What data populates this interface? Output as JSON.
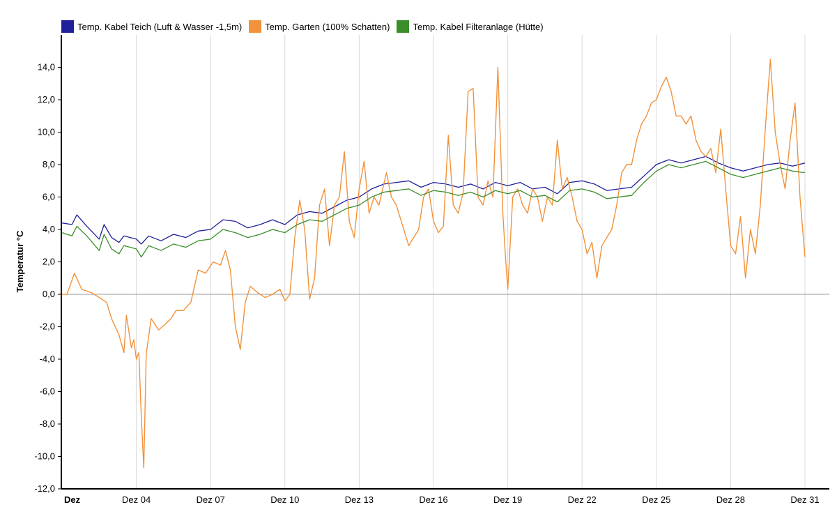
{
  "legend": {
    "items": [
      {
        "label": "Temp. Kabel Teich (Luft & Wasser -1,5m)",
        "color": "#1f1f9a"
      },
      {
        "label": "Temp. Garten (100% Schatten)",
        "color": "#f2923a"
      },
      {
        "label": "Temp. Kabel Filteranlage (Hütte)",
        "color": "#3a8e2a"
      }
    ]
  },
  "chart_data": {
    "type": "line",
    "ylabel": "Temperatur °C",
    "ylim": [
      -12,
      16
    ],
    "xlim": [
      1,
      31
    ],
    "y_ticks": [
      {
        "v": -12,
        "label": "-12,0"
      },
      {
        "v": -10,
        "label": "-10,0"
      },
      {
        "v": -8,
        "label": "-8,0"
      },
      {
        "v": -6,
        "label": "-6,0"
      },
      {
        "v": -4,
        "label": "-4,0"
      },
      {
        "v": -2,
        "label": "-2,0"
      },
      {
        "v": 0,
        "label": "0,0"
      },
      {
        "v": 2,
        "label": "2,0"
      },
      {
        "v": 4,
        "label": "4,0"
      },
      {
        "v": 6,
        "label": "6,0"
      },
      {
        "v": 8,
        "label": "8,0"
      },
      {
        "v": 10,
        "label": "10,0"
      },
      {
        "v": 12,
        "label": "12,0"
      },
      {
        "v": 14,
        "label": "14,0"
      }
    ],
    "x_ticks": [
      {
        "v": 1,
        "label": "Dez",
        "bold": true
      },
      {
        "v": 4,
        "label": "Dez 04"
      },
      {
        "v": 7,
        "label": "Dez 07"
      },
      {
        "v": 10,
        "label": "Dez 10"
      },
      {
        "v": 13,
        "label": "Dez 13"
      },
      {
        "v": 16,
        "label": "Dez 16"
      },
      {
        "v": 19,
        "label": "Dez 19"
      },
      {
        "v": 22,
        "label": "Dez 22"
      },
      {
        "v": 25,
        "label": "Dez 25"
      },
      {
        "v": 28,
        "label": "Dez 28"
      },
      {
        "v": 31,
        "label": "Dez 31"
      }
    ],
    "grid": true,
    "legend_position": "top-left",
    "series": [
      {
        "name": "Temp. Kabel Teich (Luft & Wasser -1,5m)",
        "color": "#1f1f9a",
        "points": [
          [
            1.0,
            4.4
          ],
          [
            1.4,
            4.3
          ],
          [
            1.6,
            4.9
          ],
          [
            2.0,
            4.2
          ],
          [
            2.5,
            3.4
          ],
          [
            2.7,
            4.3
          ],
          [
            3.0,
            3.5
          ],
          [
            3.3,
            3.2
          ],
          [
            3.5,
            3.6
          ],
          [
            4.0,
            3.4
          ],
          [
            4.2,
            3.1
          ],
          [
            4.5,
            3.6
          ],
          [
            5.0,
            3.3
          ],
          [
            5.5,
            3.7
          ],
          [
            6.0,
            3.5
          ],
          [
            6.5,
            3.9
          ],
          [
            7.0,
            4.0
          ],
          [
            7.5,
            4.6
          ],
          [
            8.0,
            4.5
          ],
          [
            8.5,
            4.1
          ],
          [
            9.0,
            4.3
          ],
          [
            9.5,
            4.6
          ],
          [
            10.0,
            4.3
          ],
          [
            10.5,
            4.9
          ],
          [
            11.0,
            5.1
          ],
          [
            11.5,
            5.0
          ],
          [
            12.0,
            5.4
          ],
          [
            12.5,
            5.8
          ],
          [
            13.0,
            6.0
          ],
          [
            13.5,
            6.5
          ],
          [
            14.0,
            6.8
          ],
          [
            14.5,
            6.9
          ],
          [
            15.0,
            7.0
          ],
          [
            15.5,
            6.6
          ],
          [
            16.0,
            6.9
          ],
          [
            16.5,
            6.8
          ],
          [
            17.0,
            6.6
          ],
          [
            17.5,
            6.8
          ],
          [
            18.0,
            6.5
          ],
          [
            18.5,
            6.9
          ],
          [
            19.0,
            6.7
          ],
          [
            19.5,
            6.9
          ],
          [
            20.0,
            6.5
          ],
          [
            20.5,
            6.6
          ],
          [
            21.0,
            6.2
          ],
          [
            21.5,
            6.9
          ],
          [
            22.0,
            7.0
          ],
          [
            22.5,
            6.8
          ],
          [
            23.0,
            6.4
          ],
          [
            23.5,
            6.5
          ],
          [
            24.0,
            6.6
          ],
          [
            24.5,
            7.3
          ],
          [
            25.0,
            8.0
          ],
          [
            25.5,
            8.3
          ],
          [
            26.0,
            8.1
          ],
          [
            26.5,
            8.3
          ],
          [
            27.0,
            8.5
          ],
          [
            27.5,
            8.1
          ],
          [
            28.0,
            7.8
          ],
          [
            28.5,
            7.6
          ],
          [
            29.0,
            7.8
          ],
          [
            29.5,
            8.0
          ],
          [
            30.0,
            8.1
          ],
          [
            30.5,
            7.9
          ],
          [
            31.0,
            8.1
          ]
        ]
      },
      {
        "name": "Temp. Garten (100% Schatten)",
        "color": "#f2923a",
        "points": [
          [
            1.0,
            0.0
          ],
          [
            1.2,
            0.0
          ],
          [
            1.5,
            1.3
          ],
          [
            1.8,
            0.3
          ],
          [
            2.2,
            0.1
          ],
          [
            2.5,
            -0.2
          ],
          [
            2.8,
            -0.5
          ],
          [
            3.0,
            -1.5
          ],
          [
            3.3,
            -2.5
          ],
          [
            3.5,
            -3.6
          ],
          [
            3.6,
            -1.3
          ],
          [
            3.8,
            -3.3
          ],
          [
            3.9,
            -2.8
          ],
          [
            4.0,
            -4.0
          ],
          [
            4.1,
            -3.6
          ],
          [
            4.2,
            -7.5
          ],
          [
            4.3,
            -10.7
          ],
          [
            4.4,
            -3.7
          ],
          [
            4.6,
            -1.5
          ],
          [
            4.9,
            -2.2
          ],
          [
            5.2,
            -1.8
          ],
          [
            5.4,
            -1.5
          ],
          [
            5.6,
            -1.0
          ],
          [
            5.9,
            -1.0
          ],
          [
            6.2,
            -0.5
          ],
          [
            6.5,
            1.5
          ],
          [
            6.8,
            1.3
          ],
          [
            7.1,
            2.0
          ],
          [
            7.4,
            1.8
          ],
          [
            7.6,
            2.7
          ],
          [
            7.8,
            1.5
          ],
          [
            8.0,
            -2.0
          ],
          [
            8.2,
            -3.4
          ],
          [
            8.4,
            -0.5
          ],
          [
            8.6,
            0.5
          ],
          [
            8.9,
            0.1
          ],
          [
            9.2,
            -0.2
          ],
          [
            9.5,
            0.0
          ],
          [
            9.8,
            0.3
          ],
          [
            10.0,
            -0.4
          ],
          [
            10.2,
            0.0
          ],
          [
            10.4,
            3.5
          ],
          [
            10.6,
            5.8
          ],
          [
            10.8,
            4.0
          ],
          [
            11.0,
            -0.3
          ],
          [
            11.2,
            1.0
          ],
          [
            11.4,
            5.5
          ],
          [
            11.6,
            6.5
          ],
          [
            11.8,
            3.0
          ],
          [
            12.0,
            5.5
          ],
          [
            12.2,
            6.0
          ],
          [
            12.4,
            8.8
          ],
          [
            12.6,
            4.5
          ],
          [
            12.8,
            3.5
          ],
          [
            13.0,
            6.5
          ],
          [
            13.2,
            8.2
          ],
          [
            13.4,
            5.0
          ],
          [
            13.6,
            6.0
          ],
          [
            13.8,
            5.5
          ],
          [
            14.1,
            7.5
          ],
          [
            14.3,
            6.0
          ],
          [
            14.5,
            5.5
          ],
          [
            14.7,
            4.5
          ],
          [
            15.0,
            3.0
          ],
          [
            15.2,
            3.5
          ],
          [
            15.4,
            4.0
          ],
          [
            15.6,
            6.0
          ],
          [
            15.8,
            6.5
          ],
          [
            16.0,
            4.5
          ],
          [
            16.2,
            3.8
          ],
          [
            16.4,
            4.2
          ],
          [
            16.6,
            9.8
          ],
          [
            16.8,
            5.5
          ],
          [
            17.0,
            5.0
          ],
          [
            17.2,
            6.3
          ],
          [
            17.4,
            12.5
          ],
          [
            17.6,
            12.7
          ],
          [
            17.8,
            6.0
          ],
          [
            18.0,
            5.5
          ],
          [
            18.2,
            7.0
          ],
          [
            18.4,
            6.0
          ],
          [
            18.6,
            14.0
          ],
          [
            18.8,
            5.0
          ],
          [
            18.9,
            2.5
          ],
          [
            19.0,
            0.3
          ],
          [
            19.2,
            6.0
          ],
          [
            19.4,
            6.5
          ],
          [
            19.6,
            5.5
          ],
          [
            19.8,
            5.0
          ],
          [
            20.0,
            6.5
          ],
          [
            20.2,
            6.0
          ],
          [
            20.4,
            4.5
          ],
          [
            20.6,
            6.0
          ],
          [
            20.8,
            5.5
          ],
          [
            21.0,
            9.5
          ],
          [
            21.2,
            6.5
          ],
          [
            21.4,
            7.2
          ],
          [
            21.6,
            6.0
          ],
          [
            21.8,
            4.5
          ],
          [
            22.0,
            4.0
          ],
          [
            22.2,
            2.5
          ],
          [
            22.4,
            3.2
          ],
          [
            22.6,
            1.0
          ],
          [
            22.8,
            3.0
          ],
          [
            23.0,
            3.5
          ],
          [
            23.2,
            4.0
          ],
          [
            23.4,
            5.5
          ],
          [
            23.6,
            7.5
          ],
          [
            23.8,
            8.0
          ],
          [
            24.0,
            8.0
          ],
          [
            24.2,
            9.5
          ],
          [
            24.4,
            10.5
          ],
          [
            24.6,
            11.0
          ],
          [
            24.8,
            11.8
          ],
          [
            25.0,
            12.0
          ],
          [
            25.2,
            12.8
          ],
          [
            25.4,
            13.4
          ],
          [
            25.6,
            12.5
          ],
          [
            25.8,
            11.0
          ],
          [
            26.0,
            11.0
          ],
          [
            26.2,
            10.5
          ],
          [
            26.4,
            11.0
          ],
          [
            26.6,
            9.5
          ],
          [
            26.8,
            8.8
          ],
          [
            27.0,
            8.5
          ],
          [
            27.2,
            9.0
          ],
          [
            27.4,
            7.5
          ],
          [
            27.6,
            10.2
          ],
          [
            27.8,
            6.5
          ],
          [
            28.0,
            3.0
          ],
          [
            28.2,
            2.5
          ],
          [
            28.4,
            4.8
          ],
          [
            28.6,
            1.0
          ],
          [
            28.8,
            4.0
          ],
          [
            29.0,
            2.5
          ],
          [
            29.2,
            5.5
          ],
          [
            29.4,
            10.2
          ],
          [
            29.6,
            14.5
          ],
          [
            29.8,
            10.0
          ],
          [
            30.0,
            8.0
          ],
          [
            30.2,
            6.5
          ],
          [
            30.4,
            9.5
          ],
          [
            30.6,
            11.8
          ],
          [
            30.8,
            6.0
          ],
          [
            31.0,
            2.3
          ]
        ]
      },
      {
        "name": "Temp. Kabel Filteranlage (Hütte)",
        "color": "#3a8e2a",
        "points": [
          [
            1.0,
            3.8
          ],
          [
            1.4,
            3.6
          ],
          [
            1.6,
            4.2
          ],
          [
            2.0,
            3.6
          ],
          [
            2.5,
            2.7
          ],
          [
            2.7,
            3.7
          ],
          [
            3.0,
            2.8
          ],
          [
            3.3,
            2.5
          ],
          [
            3.5,
            3.0
          ],
          [
            4.0,
            2.8
          ],
          [
            4.2,
            2.3
          ],
          [
            4.5,
            3.0
          ],
          [
            5.0,
            2.7
          ],
          [
            5.5,
            3.1
          ],
          [
            6.0,
            2.9
          ],
          [
            6.5,
            3.3
          ],
          [
            7.0,
            3.4
          ],
          [
            7.5,
            4.0
          ],
          [
            8.0,
            3.8
          ],
          [
            8.5,
            3.5
          ],
          [
            9.0,
            3.7
          ],
          [
            9.5,
            4.0
          ],
          [
            10.0,
            3.8
          ],
          [
            10.5,
            4.3
          ],
          [
            11.0,
            4.6
          ],
          [
            11.5,
            4.5
          ],
          [
            12.0,
            4.9
          ],
          [
            12.5,
            5.3
          ],
          [
            13.0,
            5.5
          ],
          [
            13.5,
            6.0
          ],
          [
            14.0,
            6.3
          ],
          [
            14.5,
            6.4
          ],
          [
            15.0,
            6.5
          ],
          [
            15.5,
            6.1
          ],
          [
            16.0,
            6.4
          ],
          [
            16.5,
            6.3
          ],
          [
            17.0,
            6.1
          ],
          [
            17.5,
            6.3
          ],
          [
            18.0,
            6.0
          ],
          [
            18.5,
            6.4
          ],
          [
            19.0,
            6.2
          ],
          [
            19.5,
            6.4
          ],
          [
            20.0,
            6.0
          ],
          [
            20.5,
            6.1
          ],
          [
            21.0,
            5.7
          ],
          [
            21.5,
            6.4
          ],
          [
            22.0,
            6.5
          ],
          [
            22.5,
            6.3
          ],
          [
            23.0,
            5.9
          ],
          [
            23.5,
            6.0
          ],
          [
            24.0,
            6.1
          ],
          [
            24.5,
            6.9
          ],
          [
            25.0,
            7.6
          ],
          [
            25.5,
            8.0
          ],
          [
            26.0,
            7.8
          ],
          [
            26.5,
            8.0
          ],
          [
            27.0,
            8.2
          ],
          [
            27.5,
            7.8
          ],
          [
            28.0,
            7.4
          ],
          [
            28.5,
            7.2
          ],
          [
            29.0,
            7.4
          ],
          [
            29.5,
            7.6
          ],
          [
            30.0,
            7.8
          ],
          [
            30.5,
            7.6
          ],
          [
            31.0,
            7.5
          ]
        ]
      }
    ]
  }
}
